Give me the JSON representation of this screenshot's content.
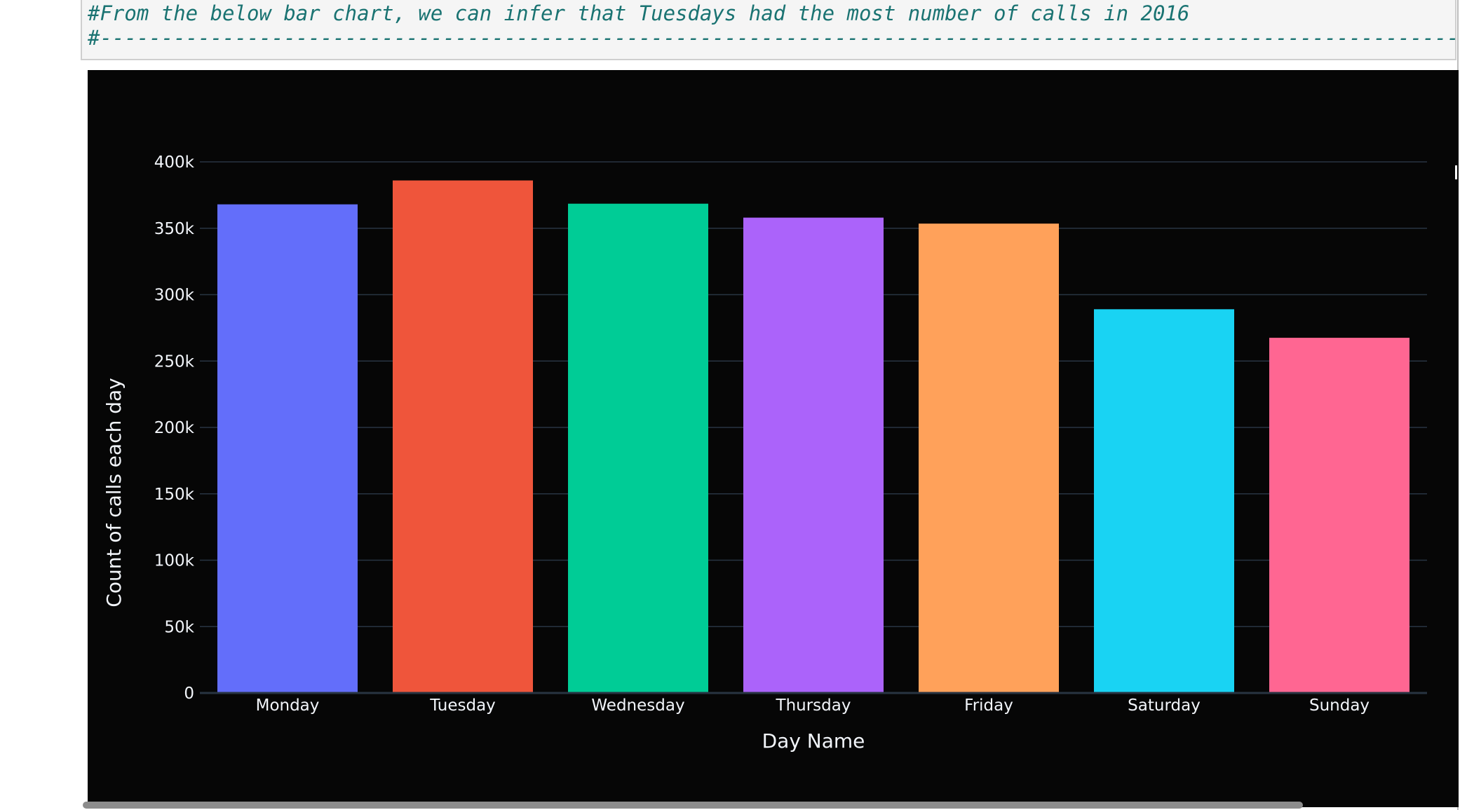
{
  "notebook": {
    "comment_line_1": "#From the below bar chart, we can infer that Tuesdays had the most number of calls in 2016",
    "comment_line_2": "#----------------------------------------------------------------------------------------------------------------------------------------"
  },
  "chart_data": {
    "type": "bar",
    "categories": [
      "Monday",
      "Tuesday",
      "Wednesday",
      "Thursday",
      "Friday",
      "Saturday",
      "Sunday"
    ],
    "values": [
      368000,
      386000,
      368500,
      358000,
      353500,
      289000,
      267500
    ],
    "colors": [
      "#636EFA",
      "#EF553B",
      "#00CC96",
      "#AB63FA",
      "#FFA15A",
      "#19D3F3",
      "#FF6692"
    ],
    "xlabel": "Day Name",
    "ylabel": "Count of calls each day",
    "ylim": [
      0,
      400000
    ],
    "y_ticks": [
      0,
      50000,
      100000,
      150000,
      200000,
      250000,
      300000,
      350000,
      400000
    ],
    "y_tick_labels": [
      "0",
      "50k",
      "100k",
      "150k",
      "200k",
      "250k",
      "300k",
      "350k",
      "400k"
    ],
    "grid": true,
    "background": "#060606",
    "gridline_color": "#283442",
    "text_color": "#f2f5fa",
    "legend": "none"
  }
}
